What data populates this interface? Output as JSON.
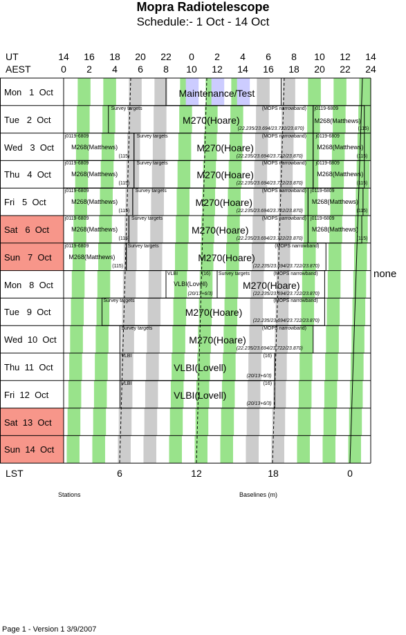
{
  "title": "Mopra Radiotelescope",
  "subtitle": "Schedule:- 1  Oct - 14 Oct",
  "header": {
    "ut_label": "UT",
    "aest_label": "AEST",
    "ut_hours": [
      "14",
      "16",
      "18",
      "20",
      "22",
      "0",
      "2",
      "4",
      "6",
      "8",
      "10",
      "12",
      "14"
    ],
    "aest_hours": [
      "0",
      "2",
      "4",
      "6",
      "8",
      "10",
      "12",
      "14",
      "16",
      "18",
      "20",
      "22",
      "24"
    ]
  },
  "days": [
    {
      "label": "Mon   1  Oct",
      "weekend": false
    },
    {
      "label": "Tue   2  Oct",
      "weekend": false
    },
    {
      "label": "Wed   3  Oct",
      "weekend": false
    },
    {
      "label": "Thu   4  Oct",
      "weekend": false
    },
    {
      "label": "Fri   5  Oct",
      "weekend": false
    },
    {
      "label": "Sat   6  Oct",
      "weekend": true
    },
    {
      "label": "Sun   7  Oct",
      "weekend": true
    },
    {
      "label": "Mon   8  Oct",
      "weekend": false
    },
    {
      "label": "Tue   9  Oct",
      "weekend": false
    },
    {
      "label": "Wed  10  Oct",
      "weekend": false
    },
    {
      "label": "Thu  11  Oct",
      "weekend": false
    },
    {
      "label": "Fri  12  Oct",
      "weekend": false
    },
    {
      "label": "Sat  13  Oct",
      "weekend": true
    },
    {
      "label": "Sun  14  Oct",
      "weekend": true
    }
  ],
  "texts": {
    "maintenance": "Maintenance/Test",
    "survey": "Survey targets",
    "mops": "(MOPS narrowband)",
    "m270": "M270(Hoare)",
    "m270_freq_a": "(22.235/23.694/23.722/23.870)",
    "m270_freq_b": "(22.235/23.694/23.722/23.870)",
    "j0119": "j0119-6809",
    "m268": "M268(Matthews)",
    "n115": "(115)",
    "vlbi": "VLBI",
    "vlbi_lovell": "VLBI(Lovell)",
    "n16": "(16)",
    "vlbi_freq": "(20/13+6/3)",
    "none": "none"
  },
  "lst": {
    "label": "LST",
    "ticks": [
      "6",
      "12",
      "18",
      "0"
    ]
  },
  "footer": {
    "stations": "Stations",
    "baselines": "Baselines (m)",
    "page": "Page 1 - Version 1  3/9/2007"
  },
  "colors": {
    "green": "#99e38b",
    "gray": "#cccccc",
    "lavender": "#ccccff",
    "weekend": "#f7968a"
  }
}
